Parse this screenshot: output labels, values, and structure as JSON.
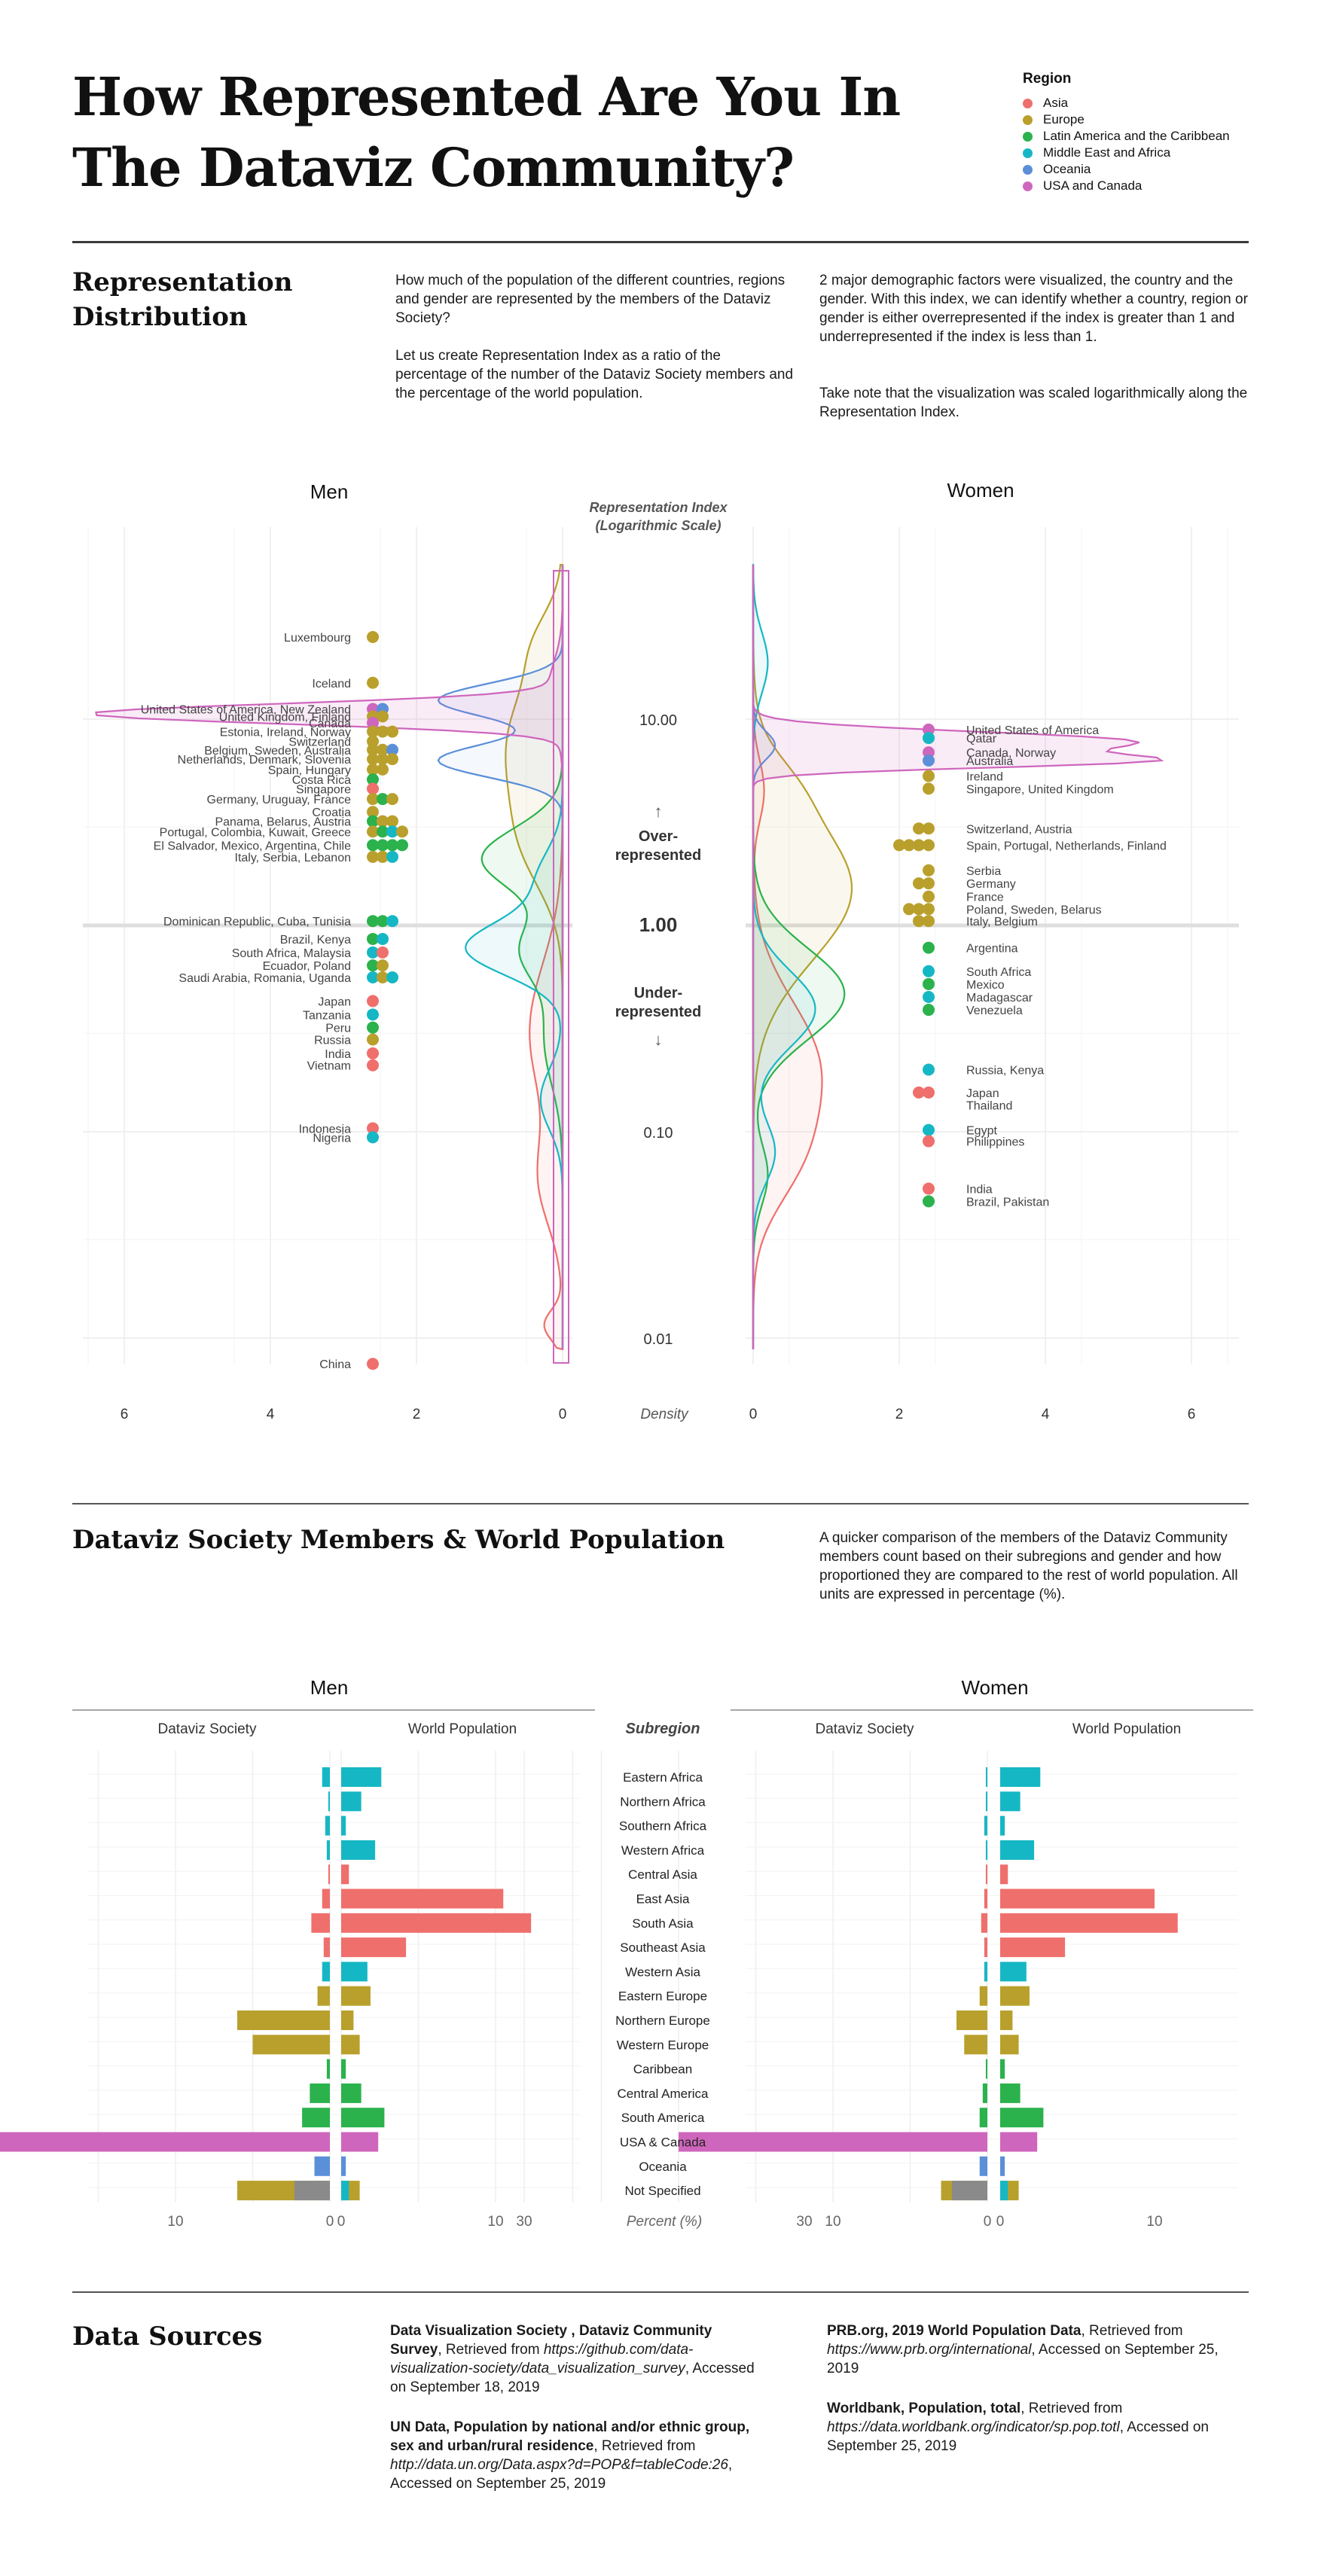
{
  "header": {
    "title_line1": "How Represented Are You In",
    "title_line2": "The Dataviz Community?"
  },
  "legend": {
    "title": "Region",
    "items": [
      {
        "label": "Asia",
        "color": "#ef6f6c"
      },
      {
        "label": "Europe",
        "color": "#b9a02c"
      },
      {
        "label": "Latin America and the Caribbean",
        "color": "#2bb24c"
      },
      {
        "label": "Middle East and Africa",
        "color": "#16b7c4"
      },
      {
        "label": "Oceania",
        "color": "#5b8fd8"
      },
      {
        "label": "USA and Canada",
        "color": "#cf66bd"
      }
    ]
  },
  "section1": {
    "title_line1": "Representation",
    "title_line2": "Distribution",
    "para1": "How much of the population of the different countries, regions and gender are represented by the members of the Dataviz Society?",
    "para2": "Let us create Representation Index as a ratio of the percentage of the number of the Dataviz Society members and the percentage of the world population.",
    "para3": "2 major demographic factors were visualized, the country and the gender. With this index, we can identify whether a country, region or gender is either overrepresented if the index is greater than 1 and underrepresented if the index is less than 1.",
    "para4": "Take note that the visualization was scaled logarithmically along the Representation Index."
  },
  "section2": {
    "title": "Dataviz Society Members & World Population",
    "para": "A quicker comparison of the members of the Dataviz Community members count based on their subregions and gender and how proportioned they are compared to the rest of world population. All units are expressed in percentage (%)."
  },
  "sources": {
    "title": "Data Sources",
    "s1_bold": "Data Visualization Society , Dataviz Community Survey",
    "s1_text": ", Retrieved from ",
    "s1_url": "https://github.com/data-visualization-society/data_visualization_survey",
    "s1_tail": ", Accessed on September 18, 2019",
    "s2_bold": "UN Data, Population by national and/or ethnic group, sex and urban/rural residence",
    "s2_text": ", Retrieved from ",
    "s2_url": "http://data.un.org/Data.aspx?d=POP&f=tableCode:26",
    "s2_tail": ", Accessed on September 25, 2019",
    "s3_bold": "PRB.org, 2019 World Population Data",
    "s3_text": ", Retrieved from ",
    "s3_url": "https://www.prb.org/international",
    "s3_tail": ", Accessed on September 25, 2019",
    "s4_bold": "Worldbank, Population, total",
    "s4_text": ", Retrieved from ",
    "s4_url": "https://data.worldbank.org/indicator/sp.pop.totl",
    "s4_tail": ", Accessed on September 25, 2019"
  },
  "chart_data": [
    {
      "type": "scatter",
      "title": "Representation Index (Logarithmic Scale)",
      "panels": [
        "Men",
        "Women"
      ],
      "y_scale": "log",
      "ylim": [
        0.007,
        25
      ],
      "y_ticks": [
        10,
        1,
        0.1,
        0.01
      ],
      "y_tick_labels": [
        "10.00",
        "1.00",
        "0.10",
        "0.01"
      ],
      "x_label": "Density",
      "x_ticks": [
        6,
        4,
        2,
        0
      ],
      "density_xlim": [
        0,
        6
      ],
      "annotations": {
        "over": "Over-\nrepresented",
        "under": "Under-\nrepresented"
      },
      "men": {
        "groups": [
          {
            "label": "Luxembourg",
            "y": 25.0,
            "colors": [
              "#b9a02c"
            ]
          },
          {
            "label": "Iceland",
            "y": 15.0,
            "colors": [
              "#b9a02c"
            ]
          },
          {
            "label": "United States of America, New Zealand",
            "y": 11.2,
            "colors": [
              "#cf66bd",
              "#5b8fd8"
            ]
          },
          {
            "label": "United Kingdom, Finland",
            "y": 10.3,
            "colors": [
              "#b9a02c",
              "#b9a02c"
            ]
          },
          {
            "label": "Canada",
            "y": 9.6,
            "colors": [
              "#cf66bd"
            ]
          },
          {
            "label": "Estonia, Ireland, Norway",
            "y": 8.7,
            "colors": [
              "#b9a02c",
              "#b9a02c",
              "#b9a02c"
            ]
          },
          {
            "label": "Switzerland",
            "y": 7.8,
            "colors": [
              "#b9a02c"
            ]
          },
          {
            "label": "Belgium, Sweden, Australia",
            "y": 7.1,
            "colors": [
              "#b9a02c",
              "#b9a02c",
              "#5b8fd8"
            ]
          },
          {
            "label": "Netherlands, Denmark, Slovenia",
            "y": 6.4,
            "colors": [
              "#b9a02c",
              "#b9a02c",
              "#b9a02c"
            ]
          },
          {
            "label": "Spain, Hungary",
            "y": 5.7,
            "colors": [
              "#b9a02c",
              "#b9a02c"
            ]
          },
          {
            "label": "Costa Rica",
            "y": 5.1,
            "colors": [
              "#2bb24c"
            ]
          },
          {
            "label": "Singapore",
            "y": 4.6,
            "colors": [
              "#ef6f6c"
            ]
          },
          {
            "label": "Germany, Uruguay, France",
            "y": 4.1,
            "colors": [
              "#b9a02c",
              "#2bb24c",
              "#b9a02c"
            ]
          },
          {
            "label": "Croatia",
            "y": 3.55,
            "colors": [
              "#b9a02c"
            ]
          },
          {
            "label": "Panama, Belarus, Austria",
            "y": 3.2,
            "colors": [
              "#2bb24c",
              "#b9a02c",
              "#b9a02c"
            ]
          },
          {
            "label": "Portugal, Colombia, Kuwait, Greece",
            "y": 2.85,
            "colors": [
              "#b9a02c",
              "#2bb24c",
              "#16b7c4",
              "#b9a02c"
            ]
          },
          {
            "label": "El Salvador, Mexico, Argentina, Chile",
            "y": 2.45,
            "colors": [
              "#2bb24c",
              "#2bb24c",
              "#2bb24c",
              "#2bb24c"
            ]
          },
          {
            "label": "Italy, Serbia, Lebanon",
            "y": 2.15,
            "colors": [
              "#b9a02c",
              "#b9a02c",
              "#16b7c4"
            ]
          },
          {
            "label": "Dominican Republic, Cuba, Tunisia",
            "y": 1.05,
            "colors": [
              "#2bb24c",
              "#2bb24c",
              "#16b7c4"
            ]
          },
          {
            "label": "Brazil, Kenya",
            "y": 0.86,
            "colors": [
              "#2bb24c",
              "#16b7c4"
            ]
          },
          {
            "label": "South Africa, Malaysia",
            "y": 0.74,
            "colors": [
              "#16b7c4",
              "#ef6f6c"
            ]
          },
          {
            "label": "Ecuador, Poland",
            "y": 0.64,
            "colors": [
              "#2bb24c",
              "#b9a02c"
            ]
          },
          {
            "label": "Saudi Arabia, Romania, Uganda",
            "y": 0.56,
            "colors": [
              "#16b7c4",
              "#b9a02c",
              "#16b7c4"
            ]
          },
          {
            "label": "Japan",
            "y": 0.43,
            "colors": [
              "#ef6f6c"
            ]
          },
          {
            "label": "Tanzania",
            "y": 0.37,
            "colors": [
              "#16b7c4"
            ]
          },
          {
            "label": "Peru",
            "y": 0.32,
            "colors": [
              "#2bb24c"
            ]
          },
          {
            "label": "Russia",
            "y": 0.28,
            "colors": [
              "#b9a02c"
            ]
          },
          {
            "label": "India",
            "y": 0.24,
            "colors": [
              "#ef6f6c"
            ]
          },
          {
            "label": "Vietnam",
            "y": 0.21,
            "colors": [
              "#ef6f6c"
            ]
          },
          {
            "label": "Indonesia",
            "y": 0.104,
            "colors": [
              "#ef6f6c"
            ]
          },
          {
            "label": "Nigeria",
            "y": 0.094,
            "colors": [
              "#16b7c4"
            ]
          },
          {
            "label": "China",
            "y": 0.0075,
            "colors": [
              "#ef6f6c"
            ]
          }
        ]
      },
      "women": {
        "groups": [
          {
            "label": "United States of America",
            "y": 8.9,
            "colors": [
              "#cf66bd"
            ]
          },
          {
            "label": "Qatar",
            "y": 8.1,
            "colors": [
              "#16b7c4"
            ]
          },
          {
            "label": "Canada, Norway",
            "y": 6.9,
            "colors": [
              "#cf66bd"
            ]
          },
          {
            "label": "Australia",
            "y": 6.3,
            "colors": [
              "#5b8fd8"
            ]
          },
          {
            "label": "Ireland",
            "y": 5.3,
            "colors": [
              "#b9a02c"
            ]
          },
          {
            "label": "Singapore, United Kingdom",
            "y": 4.6,
            "colors": [
              "#b9a02c"
            ]
          },
          {
            "label": "Switzerland, Austria",
            "y": 2.95,
            "colors": [
              "#b9a02c",
              "#b9a02c"
            ]
          },
          {
            "label": "Spain, Portugal, Netherlands, Finland",
            "y": 2.45,
            "colors": [
              "#b9a02c",
              "#b9a02c",
              "#b9a02c",
              "#b9a02c"
            ]
          },
          {
            "label": "Serbia",
            "y": 1.85,
            "colors": [
              "#b9a02c"
            ]
          },
          {
            "label": "Germany",
            "y": 1.6,
            "colors": [
              "#b9a02c",
              "#b9a02c"
            ]
          },
          {
            "label": "France",
            "y": 1.38,
            "colors": [
              "#b9a02c"
            ]
          },
          {
            "label": "Poland, Sweden, Belarus",
            "y": 1.2,
            "colors": [
              "#b9a02c",
              "#b9a02c",
              "#b9a02c"
            ]
          },
          {
            "label": "Italy, Belgium",
            "y": 1.05,
            "colors": [
              "#b9a02c",
              "#b9a02c"
            ]
          },
          {
            "label": "Argentina",
            "y": 0.78,
            "colors": [
              "#2bb24c"
            ]
          },
          {
            "label": "South Africa",
            "y": 0.6,
            "colors": [
              "#16b7c4"
            ]
          },
          {
            "label": "Mexico",
            "y": 0.52,
            "colors": [
              "#2bb24c"
            ]
          },
          {
            "label": "Madagascar",
            "y": 0.45,
            "colors": [
              "#16b7c4"
            ]
          },
          {
            "label": "Venezuela",
            "y": 0.39,
            "colors": [
              "#2bb24c"
            ]
          },
          {
            "label": "Russia, Kenya",
            "y": 0.2,
            "colors": [
              "#16b7c4"
            ]
          },
          {
            "label": "Japan",
            "y": 0.155,
            "colors": [
              "#ef6f6c",
              "#ef6f6c"
            ]
          },
          {
            "label": "Thailand",
            "y": 0.135,
            "colors": []
          },
          {
            "label": "Egypt",
            "y": 0.102,
            "colors": [
              "#16b7c4"
            ]
          },
          {
            "label": "Philippines",
            "y": 0.09,
            "colors": [
              "#ef6f6c"
            ]
          },
          {
            "label": "India",
            "y": 0.053,
            "colors": [
              "#ef6f6c"
            ]
          },
          {
            "label": "Brazil, Pakistan",
            "y": 0.046,
            "colors": [
              "#2bb24c"
            ]
          }
        ]
      }
    },
    {
      "type": "bar",
      "orientation": "horizontal",
      "panels": [
        "Men",
        "Women"
      ],
      "left_label": "Dataviz Society",
      "right_label": "World Population",
      "center_header": "Subregion",
      "x_label": "Percent (%)",
      "xlim": [
        0,
        30
      ],
      "x_ticks": [
        30,
        10,
        0
      ],
      "categories": [
        "Eastern Africa",
        "Northern Africa",
        "Southern Africa",
        "Western Africa",
        "Central Asia",
        "East Asia",
        "South Asia",
        "Southeast Asia",
        "Western Asia",
        "Eastern Europe",
        "Northern Europe",
        "Western Europe",
        "Caribbean",
        "Central America",
        "South America",
        "USA & Canada",
        "Oceania",
        "Not Specified"
      ],
      "category_colors": [
        "#16b7c4",
        "#16b7c4",
        "#16b7c4",
        "#16b7c4",
        "#ef6f6c",
        "#ef6f6c",
        "#ef6f6c",
        "#ef6f6c",
        "#16b7c4",
        "#b9a02c",
        "#b9a02c",
        "#b9a02c",
        "#2bb24c",
        "#2bb24c",
        "#2bb24c",
        "#cf66bd",
        "#5b8fd8",
        "#b9a02c"
      ],
      "men": {
        "dataviz": [
          0.5,
          0.1,
          0.3,
          0.2,
          0.1,
          0.5,
          1.2,
          0.4,
          0.5,
          0.8,
          6.0,
          5.0,
          0.2,
          1.3,
          1.8,
          29.5,
          1.0,
          6.0
        ],
        "world": [
          2.6,
          1.3,
          0.3,
          2.2,
          0.5,
          10.5,
          12.3,
          4.2,
          1.7,
          1.9,
          0.8,
          1.2,
          0.3,
          1.3,
          2.8,
          2.4,
          0.3,
          1.2
        ]
      },
      "women": {
        "dataviz": [
          0.1,
          0.1,
          0.2,
          0.1,
          0.1,
          0.2,
          0.4,
          0.2,
          0.2,
          0.5,
          2.0,
          1.5,
          0.1,
          0.3,
          0.5,
          20.0,
          0.5,
          3.0
        ],
        "world": [
          2.6,
          1.3,
          0.3,
          2.2,
          0.5,
          10.0,
          11.5,
          4.2,
          1.7,
          1.9,
          0.8,
          1.2,
          0.3,
          1.3,
          2.8,
          2.4,
          0.3,
          1.2
        ]
      }
    }
  ]
}
